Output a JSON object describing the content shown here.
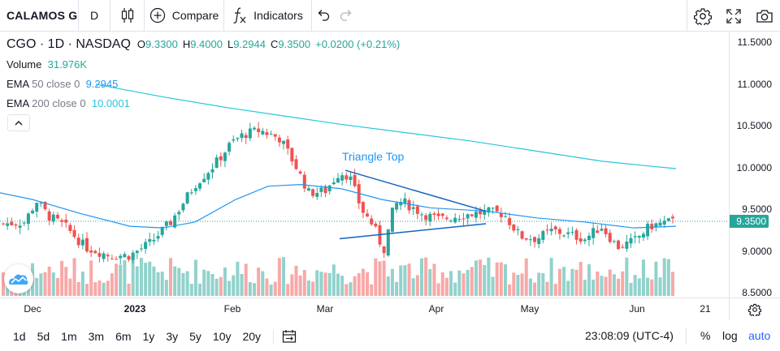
{
  "toolbar": {
    "symbol": "CALAMOS G",
    "interval": "D",
    "compare_label": "Compare",
    "indicators_label": "Indicators"
  },
  "legend": {
    "ticker": "CGO",
    "interval": "1D",
    "exchange": "NASDAQ",
    "open_label": "O",
    "open": "9.3300",
    "high_label": "H",
    "high": "9.4000",
    "low_label": "L",
    "low": "9.2944",
    "close_label": "C",
    "close": "9.3500",
    "change": "+0.0200 (+0.21%)",
    "volume_label": "Volume",
    "volume": "31.976K",
    "ema50_label": "EMA",
    "ema50_params": "50 close 0",
    "ema50_value": "9.2945",
    "ema200_label": "EMA",
    "ema200_params": "200 close 0",
    "ema200_value": "10.0001"
  },
  "annotation": {
    "pattern": "Triangle Top"
  },
  "price_scale": [
    "11.5000",
    "11.0000",
    "10.5000",
    "10.0000",
    "9.5000",
    "9.0000",
    "8.5000"
  ],
  "last_price": "9.3500",
  "time_scale": [
    "Dec",
    "2023",
    "Feb",
    "Mar",
    "Apr",
    "May",
    "Jun",
    "21"
  ],
  "ranges": [
    "1d",
    "5d",
    "1m",
    "3m",
    "6m",
    "1y",
    "3y",
    "5y",
    "10y",
    "20y"
  ],
  "bottom": {
    "clock": "23:08:09 (UTC-4)",
    "percent": "%",
    "log": "log",
    "auto": "auto"
  },
  "colors": {
    "up": "#26a69a",
    "down": "#ef5350",
    "ema50": "#2196f3",
    "ema200": "#26c6da",
    "accent": "#2962ff"
  },
  "icons": [
    "candle-type-icon",
    "plus-circle-icon",
    "fx-icon",
    "undo-icon",
    "redo-icon",
    "gear-icon",
    "fullscreen-icon",
    "camera-icon",
    "calendar-range-icon",
    "chevron-up-icon",
    "tradingview-logo-icon"
  ]
}
